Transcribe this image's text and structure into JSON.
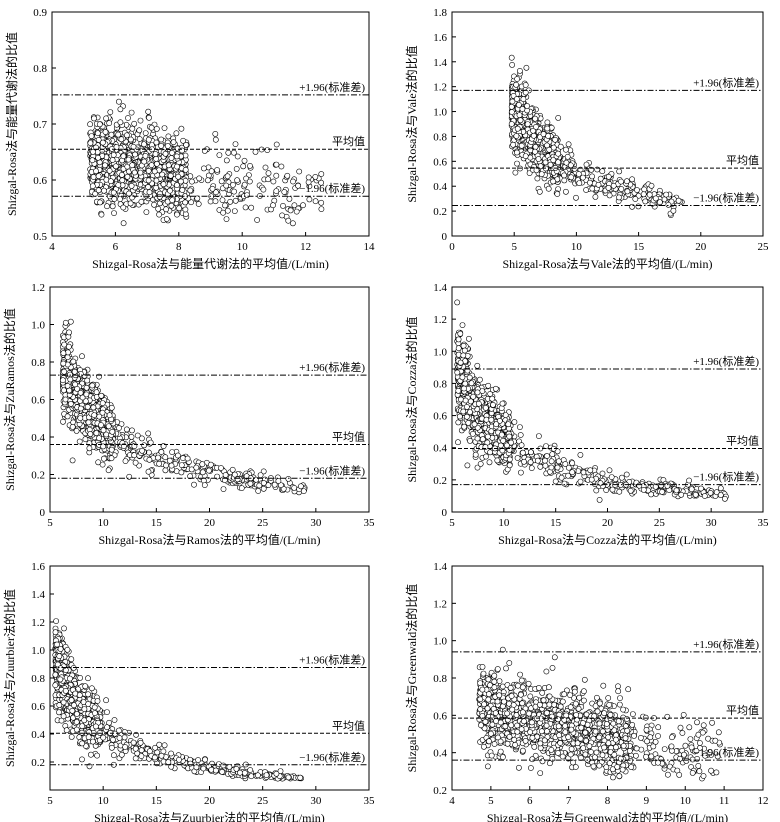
{
  "chart_data": [
    {
      "type": "scatter",
      "xlabel": "Shizgal-Rosa法与能量代谢法的平均值/(L/min)",
      "ylabel": "Shizgal-Rosa法与能量代谢法的比值",
      "xlim": [
        4,
        14
      ],
      "ylim": [
        0.5,
        0.9
      ],
      "xticks": [
        4,
        6,
        8,
        10,
        12,
        14
      ],
      "yticks": [
        0.5,
        0.6,
        0.7,
        0.8,
        0.9
      ],
      "ytick_labels": [
        "0.5",
        "0.6",
        "0.7",
        "0.8",
        "0.9"
      ],
      "lines": [
        {
          "label": "+1.96(标准差)",
          "y": 0.752,
          "style": "dashdot"
        },
        {
          "label": "平均值",
          "y": 0.655,
          "style": "dashed"
        },
        {
          "label": "−1.96(标准差)",
          "y": 0.571,
          "style": "dashdot"
        }
      ],
      "cloud": {
        "x_min": 5.2,
        "x_max": 12.5,
        "x_peak": 7.0,
        "n": 1300,
        "center_a": 0.69,
        "center_b": -0.01,
        "spread": 0.035
      }
    },
    {
      "type": "scatter",
      "xlabel": "Shizgal-Rosa法与Vale法的平均值/(L/min)",
      "ylabel": "Shizgal-Rosa法与Vale法的比值",
      "xlim": [
        0,
        25
      ],
      "ylim": [
        0,
        1.8
      ],
      "xticks": [
        0,
        5,
        10,
        15,
        20,
        25
      ],
      "yticks": [
        0,
        0.2,
        0.4,
        0.6,
        0.8,
        1.0,
        1.2,
        1.4,
        1.6,
        1.8
      ],
      "ytick_labels": [
        "0",
        "0.2",
        "0.4",
        "0.6",
        "0.8",
        "1.0",
        "1.2",
        "1.4",
        "1.6",
        "1.8"
      ],
      "lines": [
        {
          "label": "+1.96(标准差)",
          "y": 1.17,
          "style": "dashdot"
        },
        {
          "label": "平均值",
          "y": 0.545,
          "style": "dashed"
        },
        {
          "label": "−1.96(标准差)",
          "y": 0.245,
          "style": "dashdot"
        }
      ],
      "cloud": {
        "x_min": 4.8,
        "x_max": 18.5,
        "x_peak": 7.0,
        "n": 1300,
        "k": 4.3,
        "floor": 0.05,
        "spread": 0.12
      }
    },
    {
      "type": "scatter",
      "xlabel": "Shizgal-Rosa法与Ramos法的平均值/(L/min)",
      "ylabel": "Shizgal-Rosa法与ZuRamos法的比值",
      "xlim": [
        5,
        35
      ],
      "ylim": [
        0,
        1.2
      ],
      "xticks": [
        5,
        10,
        15,
        20,
        25,
        30,
        35
      ],
      "yticks": [
        0,
        0.2,
        0.4,
        0.6,
        0.8,
        1.0,
        1.2
      ],
      "ytick_labels": [
        "0",
        "0.2",
        "0.4",
        "0.6",
        "0.8",
        "1.0",
        "1.2"
      ],
      "lines": [
        {
          "label": "+1.96(标准差)",
          "y": 0.73,
          "style": "dashdot"
        },
        {
          "label": "平均值",
          "y": 0.36,
          "style": "dashed"
        },
        {
          "label": "−1.96(标准差)",
          "y": 0.18,
          "style": "dashdot"
        }
      ],
      "cloud": {
        "x_min": 6.2,
        "x_max": 29.0,
        "x_peak": 9.0,
        "n": 1300,
        "k": 4.6,
        "floor": -0.03,
        "spread": 0.12
      }
    },
    {
      "type": "scatter",
      "xlabel": "Shizgal-Rosa法与Cozza法的平均值/(L/min)",
      "ylabel": "Shizgal-Rosa法与Cozza法的比值",
      "xlim": [
        5,
        35
      ],
      "ylim": [
        0,
        1.4
      ],
      "xticks": [
        5,
        10,
        15,
        20,
        25,
        30,
        35
      ],
      "yticks": [
        0,
        0.2,
        0.4,
        0.6,
        0.8,
        1.0,
        1.2,
        1.4
      ],
      "ytick_labels": [
        "0",
        "0.2",
        "0.4",
        "0.6",
        "0.8",
        "1.0",
        "1.2",
        "1.4"
      ],
      "lines": [
        {
          "label": "+1.96(标准差)",
          "y": 0.89,
          "style": "dashdot"
        },
        {
          "label": "平均值",
          "y": 0.395,
          "style": "dashed"
        },
        {
          "label": "−1.96(标准差)",
          "y": 0.17,
          "style": "dashdot"
        }
      ],
      "cloud": {
        "x_min": 5.5,
        "x_max": 31.5,
        "x_peak": 8.5,
        "n": 1300,
        "k": 4.8,
        "floor": -0.05,
        "spread": 0.13
      }
    },
    {
      "type": "scatter",
      "xlabel": "Shizgal-Rosa法与Zuurbier法的平均值/(L/min)",
      "ylabel": "Shizgal-Rosa法与Zuurbier法的比值",
      "xlim": [
        5,
        35
      ],
      "ylim": [
        0,
        1.6
      ],
      "xticks": [
        5,
        10,
        15,
        20,
        25,
        30,
        35
      ],
      "yticks": [
        0.2,
        0.4,
        0.6,
        0.8,
        1.0,
        1.2,
        1.4,
        1.6
      ],
      "ytick_labels": [
        "0.2",
        "0.4",
        "0.6",
        "0.8",
        "1.0",
        "1.2",
        "1.4",
        "1.6"
      ],
      "lines": [
        {
          "label": "+1.96(标准差)",
          "y": 0.875,
          "style": "dashdot"
        },
        {
          "label": "平均值",
          "y": 0.405,
          "style": "dashed"
        },
        {
          "label": "−1.96(标准差)",
          "y": 0.18,
          "style": "dashdot"
        }
      ],
      "cloud": {
        "x_min": 5.5,
        "x_max": 29.0,
        "x_peak": 8.0,
        "n": 1300,
        "k": 5.0,
        "floor": -0.1,
        "spread": 0.13
      }
    },
    {
      "type": "scatter",
      "xlabel": "Shizgal-Rosa法与Greenwald法的平均值/(L/min)",
      "ylabel": "Shizgal-Rosa法与Greenwald法的比值",
      "xlim": [
        4,
        12
      ],
      "ylim": [
        0.2,
        1.4
      ],
      "xticks": [
        4,
        5,
        6,
        7,
        8,
        9,
        10,
        11,
        12
      ],
      "yticks": [
        0.2,
        0.4,
        0.6,
        0.8,
        1.0,
        1.2,
        1.4
      ],
      "ytick_labels": [
        "0.2",
        "0.4",
        "0.6",
        "0.8",
        "1.0",
        "1.2",
        "1.4"
      ],
      "lines": [
        {
          "label": "+1.96(标准差)",
          "y": 0.94,
          "style": "dashdot"
        },
        {
          "label": "平均值",
          "y": 0.585,
          "style": "dashed"
        },
        {
          "label": "−1.96(标准差)",
          "y": 0.36,
          "style": "dashdot"
        }
      ],
      "cloud": {
        "x_min": 4.7,
        "x_max": 10.9,
        "x_peak": 7.0,
        "n": 1300,
        "center_a": 0.85,
        "center_b": -0.045,
        "spread": 0.1
      }
    }
  ]
}
